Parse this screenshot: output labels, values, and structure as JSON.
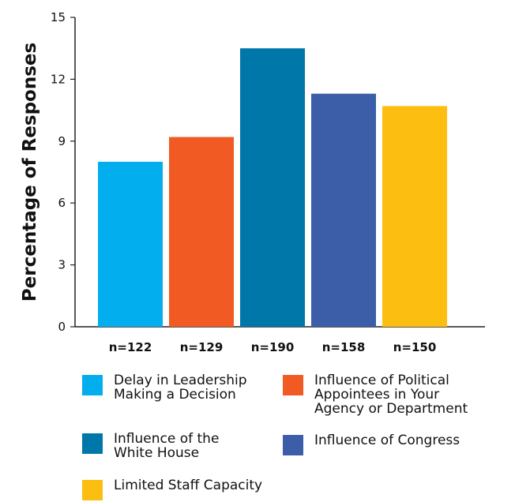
{
  "chart_data": {
    "type": "bar",
    "ylabel": "Percentage of Responses",
    "ylim": [
      0,
      15
    ],
    "yticks": [
      "0",
      "3",
      "6",
      "9",
      "12",
      "15"
    ],
    "categories": [
      "n=122",
      "n=129",
      "n=190",
      "n=158",
      "n=150"
    ],
    "values": [
      8.0,
      9.2,
      13.5,
      11.3,
      10.7
    ],
    "series_names": [
      "Delay in Leadership\nMaking a Decision",
      "Influence of Political\nAppointees in Your\nAgency or Department",
      "Influence of the\nWhite House",
      "Influence of Congress",
      "Limited Staff Capacity"
    ],
    "colors": [
      "#03aeef",
      "#f15a22",
      "#0077a9",
      "#3c5ea8",
      "#fdbe12"
    ]
  }
}
